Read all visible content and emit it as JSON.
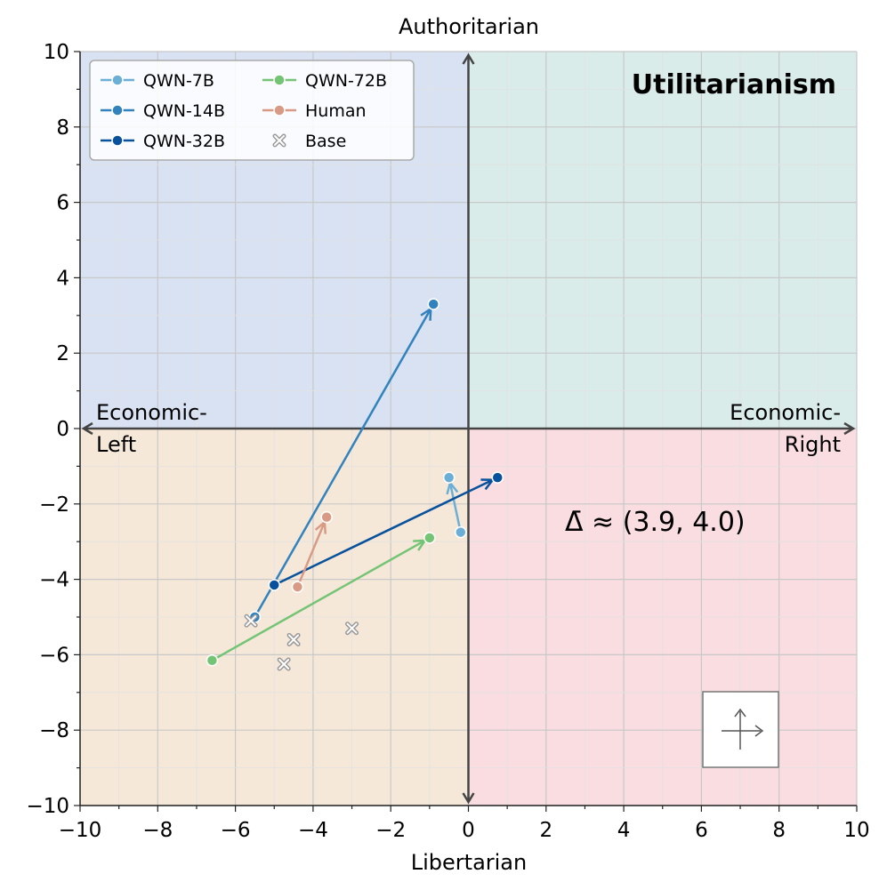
{
  "chart_data": {
    "type": "scatter",
    "title": "",
    "xlabel": "Libertarian",
    "ylabel_top": "Authoritarian",
    "xlim": [
      -10,
      10
    ],
    "ylim": [
      -10,
      10
    ],
    "xticks": [
      -10,
      -8,
      -6,
      -4,
      -2,
      0,
      2,
      4,
      6,
      8,
      10
    ],
    "yticks": [
      -10,
      -8,
      -6,
      -4,
      -2,
      0,
      2,
      4,
      6,
      8,
      10
    ],
    "grid": true,
    "quadrant_colors": {
      "top_left": "#d8e2f3",
      "top_right": "#d9ece9",
      "bottom_left": "#f6e8d8",
      "bottom_right": "#f9dde0"
    },
    "quadrant_labels": {
      "left": [
        "Economic-",
        "Left"
      ],
      "right": [
        "Economic-",
        "Right"
      ],
      "panel_title": "Utilitarianism"
    },
    "annotation": "Δ̄ ≈ (3.9, 4.0)",
    "legend_position": "top-left",
    "series": [
      {
        "name": "QWN-7B",
        "color": "#6baed6",
        "start": [
          -0.2,
          -2.75
        ],
        "end": [
          -0.5,
          -1.3
        ]
      },
      {
        "name": "QWN-14B",
        "color": "#3182bd",
        "start": [
          -5.5,
          -5.0
        ],
        "end": [
          -0.9,
          3.3
        ]
      },
      {
        "name": "QWN-32B",
        "color": "#08519c",
        "start": [
          -5.0,
          -4.15
        ],
        "end": [
          0.75,
          -1.3
        ]
      },
      {
        "name": "QWN-72B",
        "color": "#74c476",
        "start": [
          -6.6,
          -6.15
        ],
        "end": [
          -1.0,
          -2.9
        ]
      },
      {
        "name": "Human",
        "color": "#d99a85",
        "start": [
          -4.4,
          -4.2
        ],
        "end": [
          -3.65,
          -2.35
        ]
      }
    ],
    "base_points": {
      "name": "Base",
      "color": "#999999",
      "points": [
        [
          -5.6,
          -5.1
        ],
        [
          -4.5,
          -5.6
        ],
        [
          -4.75,
          -6.25
        ],
        [
          -3.0,
          -5.3
        ]
      ]
    }
  }
}
